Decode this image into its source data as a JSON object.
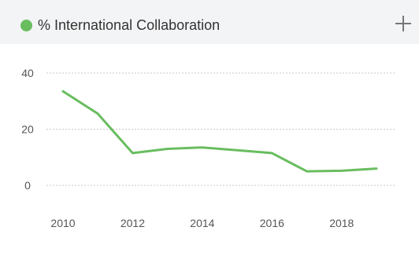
{
  "widget": {
    "title": "% International Collaboration",
    "add_icon": "plus-icon",
    "accent_color": "#69bd5f"
  },
  "chart_data": {
    "type": "line",
    "title": "% International Collaboration",
    "xlabel": "",
    "ylabel": "",
    "xlim": [
      2010,
      2019
    ],
    "ylim": [
      0,
      40
    ],
    "grid": true,
    "x_ticks": [
      "2010",
      "2012",
      "2014",
      "2016",
      "2018"
    ],
    "y_ticks": [
      "0",
      "20",
      "40"
    ],
    "series": [
      {
        "name": "% International Collaboration",
        "color": "#69bd5f",
        "x": [
          2010,
          2011,
          2012,
          2013,
          2014,
          2015,
          2016,
          2017,
          2018,
          2019
        ],
        "y": [
          33.5,
          25.5,
          11.5,
          13.0,
          13.5,
          12.5,
          11.5,
          5.0,
          5.2,
          6.0
        ]
      }
    ]
  }
}
